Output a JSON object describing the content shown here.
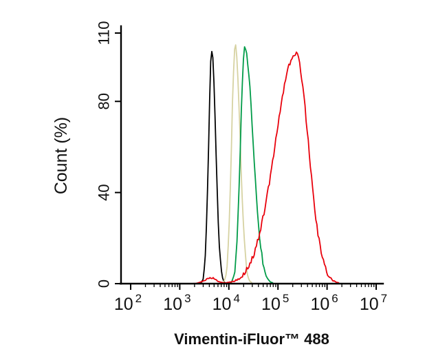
{
  "figure": {
    "background": "#ffffff"
  },
  "chart_data": {
    "type": "line",
    "subtype": "flow-cytometry-histogram",
    "title": "",
    "xlabel": "Vimentin-iFluor™ 488",
    "ylabel": "Count (%)",
    "x_scale": "log10",
    "xlim": [
      100,
      10000000
    ],
    "ylim": [
      0,
      110
    ],
    "grid": false,
    "legend": "none",
    "y_ticks": [
      {
        "label": "0",
        "value": 0
      },
      {
        "label": "40",
        "value": 40
      },
      {
        "label": "80",
        "value": 80
      },
      {
        "label": "110",
        "value": 110
      }
    ],
    "x_ticks": [
      {
        "label": "10",
        "exp": "2",
        "value": 100
      },
      {
        "label": "10",
        "exp": "3",
        "value": 1000
      },
      {
        "label": "10",
        "exp": "4",
        "value": 10000
      },
      {
        "label": "10",
        "exp": "5",
        "value": 100000
      },
      {
        "label": "10",
        "exp": "6",
        "value": 1000000
      },
      {
        "label": "10",
        "exp": "7",
        "value": 10000000
      }
    ],
    "series": [
      {
        "name": "black-control",
        "color": "#000000",
        "peak_x": 4500,
        "peak_y": 103,
        "sigma_left": 0.065,
        "sigma_right": 0.08
      },
      {
        "name": "beige-control",
        "color": "#d6d2a2",
        "peak_x": 13500,
        "peak_y": 104,
        "sigma_left": 0.075,
        "sigma_right": 0.1
      },
      {
        "name": "green-control",
        "color": "#009b48",
        "peak_x": 21000,
        "peak_y": 104,
        "sigma_left": 0.085,
        "sigma_right": 0.17
      },
      {
        "name": "red-vimentin",
        "color": "#e8000b",
        "peak_x": 230000,
        "peak_y": 101,
        "sigma_left": 0.42,
        "sigma_right": 0.26,
        "bump": {
          "x": 4200,
          "y": 2.5,
          "sigma": 0.12
        }
      }
    ]
  }
}
